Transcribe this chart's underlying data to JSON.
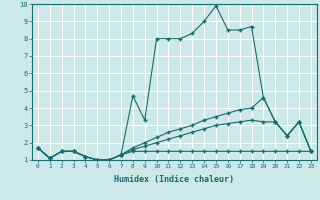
{
  "xlabel": "Humidex (Indice chaleur)",
  "ylabel": "",
  "xlim": [
    -0.5,
    23.5
  ],
  "ylim": [
    1,
    10
  ],
  "xticks": [
    0,
    1,
    2,
    3,
    4,
    5,
    6,
    7,
    8,
    9,
    10,
    11,
    12,
    13,
    14,
    15,
    16,
    17,
    18,
    19,
    20,
    21,
    22,
    23
  ],
  "yticks": [
    1,
    2,
    3,
    4,
    5,
    6,
    7,
    8,
    9,
    10
  ],
  "background_color": "#cce8e8",
  "line_color": "#1a6b6b",
  "grid_color": "#ffffff",
  "series": [
    {
      "x": [
        0,
        1,
        2,
        3,
        4,
        5,
        6,
        7,
        8,
        9,
        10,
        11,
        12,
        13,
        14,
        15,
        16,
        17,
        18,
        19,
        20,
        21,
        22,
        23
      ],
      "y": [
        1.7,
        1.1,
        1.5,
        1.5,
        1.2,
        1.0,
        1.0,
        1.3,
        4.7,
        3.3,
        8.0,
        8.0,
        8.0,
        8.3,
        9.0,
        9.9,
        8.5,
        8.5,
        8.7,
        4.6,
        3.2,
        2.4,
        3.2,
        1.5
      ]
    },
    {
      "x": [
        0,
        1,
        2,
        3,
        4,
        5,
        6,
        7,
        8,
        9,
        10,
        11,
        12,
        13,
        14,
        15,
        16,
        17,
        18,
        19,
        20,
        21,
        22,
        23
      ],
      "y": [
        1.7,
        1.1,
        1.5,
        1.5,
        1.2,
        1.0,
        1.0,
        1.3,
        1.7,
        2.0,
        2.3,
        2.6,
        2.8,
        3.0,
        3.3,
        3.5,
        3.7,
        3.9,
        4.0,
        4.6,
        3.2,
        2.4,
        3.2,
        1.5
      ]
    },
    {
      "x": [
        0,
        1,
        2,
        3,
        4,
        5,
        6,
        7,
        8,
        9,
        10,
        11,
        12,
        13,
        14,
        15,
        16,
        17,
        18,
        19,
        20,
        21,
        22,
        23
      ],
      "y": [
        1.7,
        1.1,
        1.5,
        1.5,
        1.2,
        1.0,
        1.0,
        1.3,
        1.6,
        1.8,
        2.0,
        2.2,
        2.4,
        2.6,
        2.8,
        3.0,
        3.1,
        3.2,
        3.3,
        3.2,
        3.2,
        2.4,
        3.2,
        1.5
      ]
    },
    {
      "x": [
        0,
        1,
        2,
        3,
        4,
        5,
        6,
        7,
        8,
        9,
        10,
        11,
        12,
        13,
        14,
        15,
        16,
        17,
        18,
        19,
        20,
        21,
        22,
        23
      ],
      "y": [
        1.7,
        1.1,
        1.5,
        1.5,
        1.2,
        1.0,
        1.0,
        1.3,
        1.5,
        1.5,
        1.5,
        1.5,
        1.5,
        1.5,
        1.5,
        1.5,
        1.5,
        1.5,
        1.5,
        1.5,
        1.5,
        1.5,
        1.5,
        1.5
      ]
    }
  ]
}
